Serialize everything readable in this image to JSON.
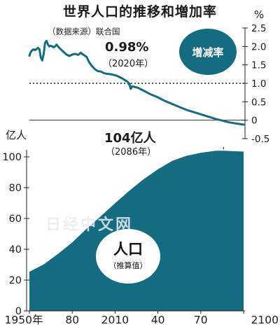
{
  "header": {
    "title": "世界人口的推移和増加率",
    "source": "（数据来源）联合国"
  },
  "watermark": "日经中文网",
  "chart_data": [
    {
      "type": "line",
      "badge": "增减率",
      "ylabel": "%",
      "ylim": [
        -0.5,
        2.5
      ],
      "yticks": [
        "2.5",
        "2.0",
        "1.5",
        "1.0",
        "0.5",
        "0",
        "-0.5"
      ],
      "reference_line": 1.0,
      "series": [
        {
          "x": [
            1950,
            1951,
            1952,
            1953,
            1954,
            1955,
            1956,
            1957,
            1958,
            1959,
            1960,
            1961,
            1962,
            1963,
            1964,
            1965,
            1966,
            1967,
            1968,
            1969,
            1970,
            1972,
            1974,
            1976,
            1978,
            1980,
            1982,
            1984,
            1986,
            1988,
            1990,
            1992,
            1994,
            1996,
            1998,
            2000,
            2002,
            2004,
            2006,
            2008,
            2010,
            2012,
            2014,
            2016,
            2018,
            2019,
            2020,
            2021,
            2022,
            2024,
            2026,
            2030,
            2035,
            2040,
            2045,
            2050,
            2055,
            2060,
            2065,
            2070,
            2075,
            2080,
            2085,
            2090,
            2095,
            2100
          ],
          "y": [
            1.75,
            1.85,
            1.9,
            1.92,
            1.9,
            1.93,
            1.96,
            1.93,
            1.7,
            1.62,
            1.8,
            2.1,
            2.15,
            2.05,
            2.0,
            2.02,
            2.0,
            1.98,
            2.0,
            2.05,
            2.0,
            1.92,
            1.85,
            1.78,
            1.74,
            1.78,
            1.8,
            1.77,
            1.83,
            1.77,
            1.72,
            1.56,
            1.46,
            1.38,
            1.33,
            1.32,
            1.28,
            1.26,
            1.25,
            1.24,
            1.22,
            1.19,
            1.15,
            1.11,
            1.06,
            1.03,
            0.98,
            0.85,
            0.92,
            0.9,
            0.88,
            0.8,
            0.7,
            0.62,
            0.52,
            0.44,
            0.36,
            0.28,
            0.22,
            0.16,
            0.1,
            0.04,
            -0.01,
            -0.06,
            -0.09,
            -0.12
          ]
        }
      ],
      "annotation": {
        "value": "0.98%",
        "year": "（2020年）",
        "x": 2020,
        "y": 0.98
      }
    },
    {
      "type": "area",
      "badge": "人口",
      "badge_sub": "（推算值）",
      "ylabel": "亿人",
      "ylim": [
        0,
        110
      ],
      "yticks": [
        "100",
        "80",
        "60",
        "40",
        "20",
        "0"
      ],
      "xticks": [
        "1950年",
        "80",
        "2010",
        "40",
        "70",
        "2100"
      ],
      "series": [
        {
          "x": [
            1950,
            1960,
            1970,
            1980,
            1990,
            2000,
            2010,
            2020,
            2030,
            2040,
            2050,
            2060,
            2070,
            2080,
            2086,
            2090,
            2100
          ],
          "y": [
            25.4,
            30.2,
            37.0,
            44.4,
            53.3,
            61.5,
            69.9,
            78.0,
            85.5,
            91.9,
            97.4,
            100.7,
            102.6,
            103.9,
            104.0,
            103.8,
            103.4
          ]
        }
      ],
      "annotation": {
        "value": "104亿人",
        "year": "（2086年）",
        "x": 2086,
        "y": 104
      }
    }
  ]
}
